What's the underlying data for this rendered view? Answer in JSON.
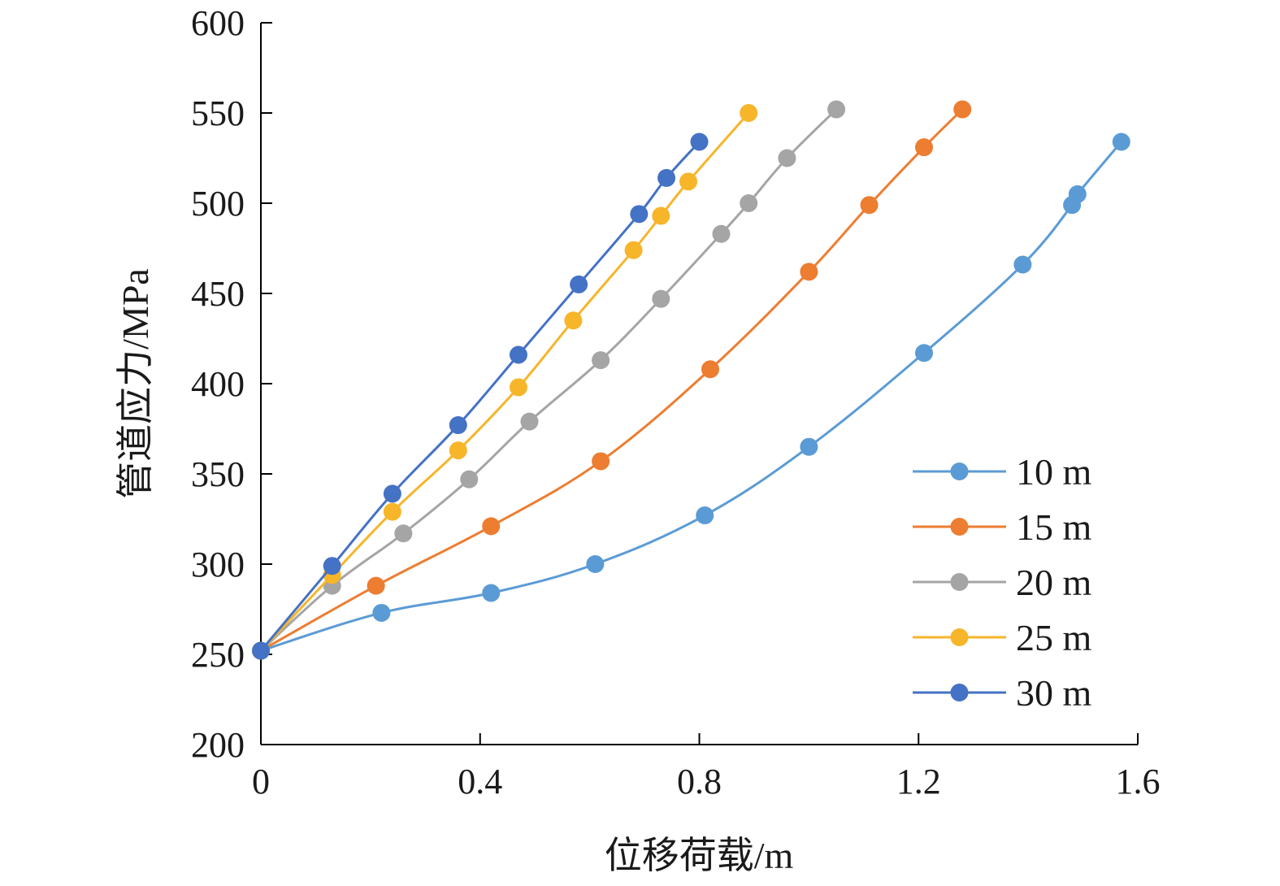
{
  "chart_data": {
    "type": "line",
    "title": "",
    "xlabel": "位移荷载/m",
    "ylabel": "管道应力/MPa",
    "xlim": [
      0,
      1.6
    ],
    "ylim": [
      200,
      600
    ],
    "xticks": [
      "0",
      "0.4",
      "0.8",
      "1.2",
      "1.6"
    ],
    "yticks": [
      "200",
      "250",
      "300",
      "350",
      "400",
      "450",
      "500",
      "550",
      "600"
    ],
    "grid": false,
    "legend_position": "bottom-right",
    "series": [
      {
        "name": "10 m",
        "color": "#5b9bd5",
        "x": [
          0,
          0.22,
          0.42,
          0.61,
          0.81,
          1.0,
          1.21,
          1.39,
          1.48,
          1.49,
          1.57
        ],
        "y": [
          252,
          273,
          284,
          300,
          327,
          365,
          417,
          466,
          499,
          505,
          534
        ]
      },
      {
        "name": "15 m",
        "color": "#ed7d31",
        "x": [
          0,
          0.21,
          0.42,
          0.62,
          0.82,
          1.0,
          1.11,
          1.21,
          1.28
        ],
        "y": [
          252,
          288,
          321,
          357,
          408,
          462,
          499,
          531,
          552
        ]
      },
      {
        "name": "20 m",
        "color": "#a5a5a5",
        "x": [
          0,
          0.13,
          0.26,
          0.38,
          0.49,
          0.62,
          0.73,
          0.84,
          0.89,
          0.96,
          1.05
        ],
        "y": [
          252,
          288,
          317,
          347,
          379,
          413,
          447,
          483,
          500,
          525,
          552
        ]
      },
      {
        "name": "25 m",
        "color": "#f7b529",
        "x": [
          0,
          0.13,
          0.24,
          0.36,
          0.47,
          0.57,
          0.68,
          0.73,
          0.78,
          0.89
        ],
        "y": [
          252,
          294,
          329,
          363,
          398,
          435,
          474,
          493,
          512,
          550
        ]
      },
      {
        "name": "30 m",
        "color": "#4472c4",
        "x": [
          0,
          0.13,
          0.24,
          0.36,
          0.47,
          0.58,
          0.69,
          0.74,
          0.8
        ],
        "y": [
          252,
          299,
          339,
          377,
          416,
          455,
          494,
          514,
          534
        ]
      }
    ]
  }
}
